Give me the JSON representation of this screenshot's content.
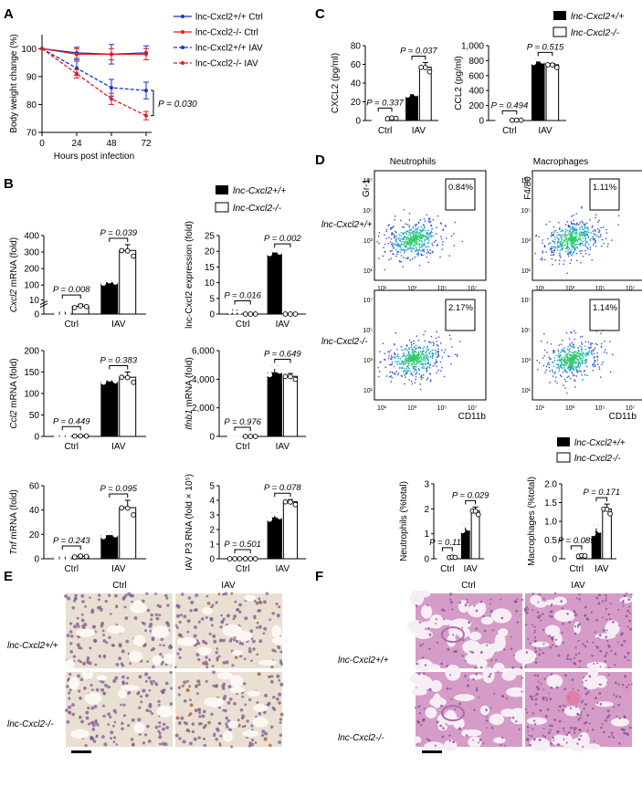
{
  "panel_letters": {
    "A": "A",
    "B": "B",
    "C": "C",
    "D": "D",
    "E": "E",
    "F": "F"
  },
  "colors": {
    "wt": "#1a2fd6",
    "ko": "#e41a1c",
    "bar_wt": "#000000",
    "bar_ko": "#ffffff",
    "ihc_bg": "#eadfd3",
    "ihc_cell": "#7a5b8f",
    "ihc_brown": "#a0582a",
    "he_bg": "#f7eef5",
    "he_tissue": "#d49cc6",
    "he_nuclei": "#8a4d9c"
  },
  "legend_bw": {
    "wt": "lnc-Cxcl2+/+",
    "ko": "lnc-Cxcl2-/-"
  },
  "chart_data": [
    {
      "id": "A",
      "type": "line",
      "xlabel": "Hours post infection",
      "ylabel": "Body weight change (%)",
      "x": [
        0,
        24,
        48,
        72
      ],
      "xticks": [
        "0",
        "24",
        "48",
        "72"
      ],
      "ylim": [
        70,
        105
      ],
      "yticks": [
        "70",
        "80",
        "90",
        "100"
      ],
      "legend": "right",
      "series": [
        {
          "name": "lnc-Cxcl2+/+ Ctrl",
          "values": [
            100,
            98.5,
            98,
            98.5
          ],
          "err": [
            0,
            2,
            3.5,
            2.5
          ],
          "style": "solid",
          "color": "wt"
        },
        {
          "name": "lnc-Cxcl2-/- Ctrl",
          "values": [
            100,
            98,
            98,
            98
          ],
          "err": [
            0,
            2,
            2,
            2
          ],
          "style": "solid",
          "color": "ko"
        },
        {
          "name": "lnc-Cxcl2+/+ IAV",
          "values": [
            100,
            93,
            86,
            85
          ],
          "err": [
            0,
            2.5,
            3,
            3
          ],
          "style": "dashed",
          "color": "wt"
        },
        {
          "name": "lnc-Cxcl2-/- IAV",
          "values": [
            100,
            91,
            82,
            76
          ],
          "err": [
            0,
            1.5,
            2,
            1.5
          ],
          "style": "dashed",
          "color": "ko"
        }
      ],
      "annotation": "P = 0.030"
    },
    {
      "id": "B1",
      "type": "bar",
      "categories": [
        "Ctrl",
        "IAV"
      ],
      "ylabel": "Cxcl2 mRNA (fold)",
      "ylim": [
        0,
        400
      ],
      "yticks": [
        "0",
        "10",
        "100",
        "200",
        "300",
        "400"
      ],
      "broken_axis": true,
      "series": [
        {
          "name": "lnc-Cxcl2+/+",
          "values": [
            1,
            115
          ],
          "err": [
            0.5,
            12
          ]
        },
        {
          "name": "lnc-Cxcl2-/-",
          "values": [
            5.5,
            310
          ],
          "err": [
            1.5,
            35
          ]
        }
      ],
      "pvalues": [
        "P = 0.008",
        "P = 0.039"
      ]
    },
    {
      "id": "B2",
      "type": "bar",
      "categories": [
        "Ctrl",
        "IAV"
      ],
      "ylabel": "lnc-Cxcl2 expression (fold)",
      "ylim": [
        0,
        25
      ],
      "yticks": [
        "0",
        "5",
        "10",
        "15",
        "20",
        "25"
      ],
      "series": [
        {
          "name": "lnc-Cxcl2+/+",
          "values": [
            1,
            19.5
          ],
          "err": [
            0.3,
            0.8
          ]
        },
        {
          "name": "lnc-Cxcl2-/-",
          "values": [
            0,
            0
          ],
          "err": [
            0,
            0
          ]
        }
      ],
      "pvalues": [
        "P = 0.016",
        "P = 0.002"
      ]
    },
    {
      "id": "B3",
      "type": "bar",
      "categories": [
        "Ctrl",
        "IAV"
      ],
      "ylabel": "Ccl2 mRNA (fold)",
      "ylim": [
        0,
        200
      ],
      "yticks": [
        "0",
        "50",
        "100",
        "150",
        "200"
      ],
      "series": [
        {
          "name": "lnc-Cxcl2+/+",
          "values": [
            1,
            128
          ],
          "err": [
            0.5,
            3
          ]
        },
        {
          "name": "lnc-Cxcl2-/-",
          "values": [
            1,
            138
          ],
          "err": [
            0.5,
            12
          ]
        }
      ],
      "pvalues": [
        "P = 0.449",
        "P = 0.383"
      ]
    },
    {
      "id": "B4",
      "type": "bar",
      "categories": [
        "Ctrl",
        "IAV"
      ],
      "ylabel": "Ifnb1 mRNA (fold)",
      "ylim": [
        0,
        6000
      ],
      "yticks": [
        "0",
        "2,000",
        "4,000",
        "6,000"
      ],
      "series": [
        {
          "name": "lnc-Cxcl2+/+",
          "values": [
            1,
            4450
          ],
          "err": [
            0,
            500
          ]
        },
        {
          "name": "lnc-Cxcl2-/-",
          "values": [
            1,
            4200
          ],
          "err": [
            0,
            200
          ]
        }
      ],
      "pvalues": [
        "P = 0.976",
        "P = 0.649"
      ]
    },
    {
      "id": "B5",
      "type": "bar",
      "categories": [
        "Ctrl",
        "IAV"
      ],
      "ylabel": "Tnf mRNA (fold)",
      "ylim": [
        0,
        60
      ],
      "yticks": [
        "0",
        "20",
        "40",
        "60"
      ],
      "series": [
        {
          "name": "lnc-Cxcl2+/+",
          "values": [
            1,
            19
          ],
          "err": [
            0.5,
            3
          ]
        },
        {
          "name": "lnc-Cxcl2-/-",
          "values": [
            2,
            42
          ],
          "err": [
            1,
            6
          ]
        }
      ],
      "pvalues": [
        "P = 0.243",
        "P = 0.095"
      ]
    },
    {
      "id": "B6",
      "type": "bar",
      "categories": [
        "Ctrl",
        "IAV"
      ],
      "ylabel": "IAV P3 RNA (fold × 10⁵)",
      "ylim": [
        0,
        5
      ],
      "yticks": [
        "0",
        "1",
        "2",
        "3",
        "4",
        "5"
      ],
      "series": [
        {
          "name": "lnc-Cxcl2+/+",
          "values": [
            0,
            2.8
          ],
          "err": [
            0,
            0.35
          ]
        },
        {
          "name": "lnc-Cxcl2-/-",
          "values": [
            0,
            3.9
          ],
          "err": [
            0,
            0.15
          ]
        }
      ],
      "pvalues": [
        "P = 0.501",
        "P = 0.078"
      ]
    },
    {
      "id": "C1",
      "type": "bar",
      "categories": [
        "Ctrl",
        "IAV"
      ],
      "ylabel": "CXCL2 (pg/ml)",
      "ylim": [
        0,
        80
      ],
      "yticks": [
        "0",
        "20",
        "40",
        "60",
        "80"
      ],
      "series": [
        {
          "name": "lnc-Cxcl2+/+",
          "values": [
            0.5,
            28
          ],
          "err": [
            0.3,
            3
          ]
        },
        {
          "name": "lnc-Cxcl2-/-",
          "values": [
            2.5,
            57
          ],
          "err": [
            1,
            5
          ]
        }
      ],
      "pvalues": [
        "P = 0.337",
        "P = 0.037"
      ]
    },
    {
      "id": "C2",
      "type": "bar",
      "categories": [
        "Ctrl",
        "IAV"
      ],
      "ylabel": "CCL2 (pg/ml)",
      "ylim": [
        0,
        1000
      ],
      "yticks": [
        "0",
        "200",
        "400",
        "600",
        "800",
        "1,000"
      ],
      "series": [
        {
          "name": "lnc-Cxcl2+/+",
          "values": [
            5,
            785
          ],
          "err": [
            2,
            40
          ]
        },
        {
          "name": "lnc-Cxcl2-/-",
          "values": [
            5,
            745
          ],
          "err": [
            2,
            15
          ]
        }
      ],
      "pvalues": [
        "P = 0.494",
        "P = 0.515"
      ]
    },
    {
      "id": "D1",
      "type": "bar",
      "categories": [
        "Ctrl",
        "IAV"
      ],
      "ylabel": "Neutrophils (%total)",
      "ylim": [
        0,
        3
      ],
      "yticks": [
        "0",
        "1",
        "2",
        "3"
      ],
      "series": [
        {
          "name": "lnc-Cxcl2+/+",
          "values": [
            0.04,
            1.18
          ],
          "err": [
            0.02,
            0.2
          ]
        },
        {
          "name": "lnc-Cxcl2-/-",
          "values": [
            0.06,
            1.92
          ],
          "err": [
            0.02,
            0.15
          ]
        }
      ],
      "pvalues": [
        "P = 0.111",
        "P = 0.029"
      ]
    },
    {
      "id": "D2",
      "type": "bar",
      "categories": [
        "Ctrl",
        "IAV"
      ],
      "ylabel": "Macrophages (%total)",
      "ylim": [
        0,
        2
      ],
      "yticks": [
        "0",
        "0.5",
        "1.0",
        "1.5",
        "2.0"
      ],
      "series": [
        {
          "name": "lnc-Cxcl2+/+",
          "values": [
            0.04,
            0.72
          ],
          "err": [
            0.02,
            0.18
          ]
        },
        {
          "name": "lnc-Cxcl2-/-",
          "values": [
            0.08,
            1.33
          ],
          "err": [
            0.02,
            0.13
          ]
        }
      ],
      "pvalues": [
        "P = 0.085",
        "P = 0.171"
      ]
    }
  ],
  "flow": {
    "col_titles": [
      "Neutrophils",
      "Macrophages"
    ],
    "y_axes": [
      "Gr-1",
      "F4/80"
    ],
    "x_axis": "CD11b",
    "ticks": [
      "10¹",
      "10³",
      "10⁵",
      "10⁷"
    ],
    "row_labels": [
      "lnc-Cxcl2+/+",
      "lnc-Cxcl2-/-"
    ],
    "gates": [
      "0.84%",
      "1.11%",
      "2.17%",
      "1.14%"
    ]
  },
  "histo": {
    "col_titles": [
      "Ctrl",
      "IAV"
    ],
    "row_labels": [
      "lnc-Cxcl2+/+",
      "lnc-Cxcl2-/-"
    ]
  }
}
